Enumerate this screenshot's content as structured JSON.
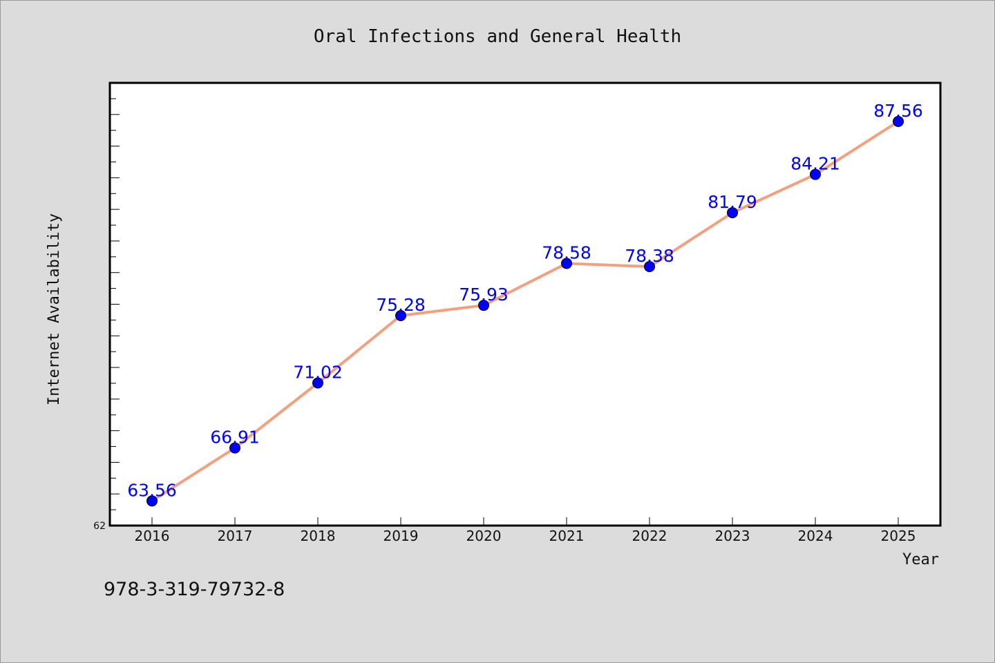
{
  "chart_data": {
    "type": "line",
    "title": "Oral Infections and General Health",
    "xlabel": "Year",
    "ylabel": "Internet Availability",
    "categories": [
      "2016",
      "2017",
      "2018",
      "2019",
      "2020",
      "2021",
      "2022",
      "2023",
      "2024",
      "2025"
    ],
    "series": [
      {
        "values": [
          63.56,
          66.91,
          71.02,
          75.28,
          75.93,
          78.58,
          78.38,
          81.79,
          84.21,
          87.56
        ]
      }
    ],
    "data_labels": [
      "63.56",
      "66.91",
      "71.02",
      "75.28",
      "75.93",
      "78.58",
      "78.38",
      "81.79",
      "84.21",
      "87.56"
    ],
    "ylim": [
      62,
      90
    ],
    "yticks_labeled": [
      "62"
    ],
    "grid": false,
    "line_color": "#f4a07f",
    "marker_color": "#0000ff",
    "label_color": "#0000ff",
    "background_color": "#dcdcdc",
    "plot_background": "#ffffff"
  },
  "footer": {
    "isbn": "978-3-319-79732-8"
  }
}
